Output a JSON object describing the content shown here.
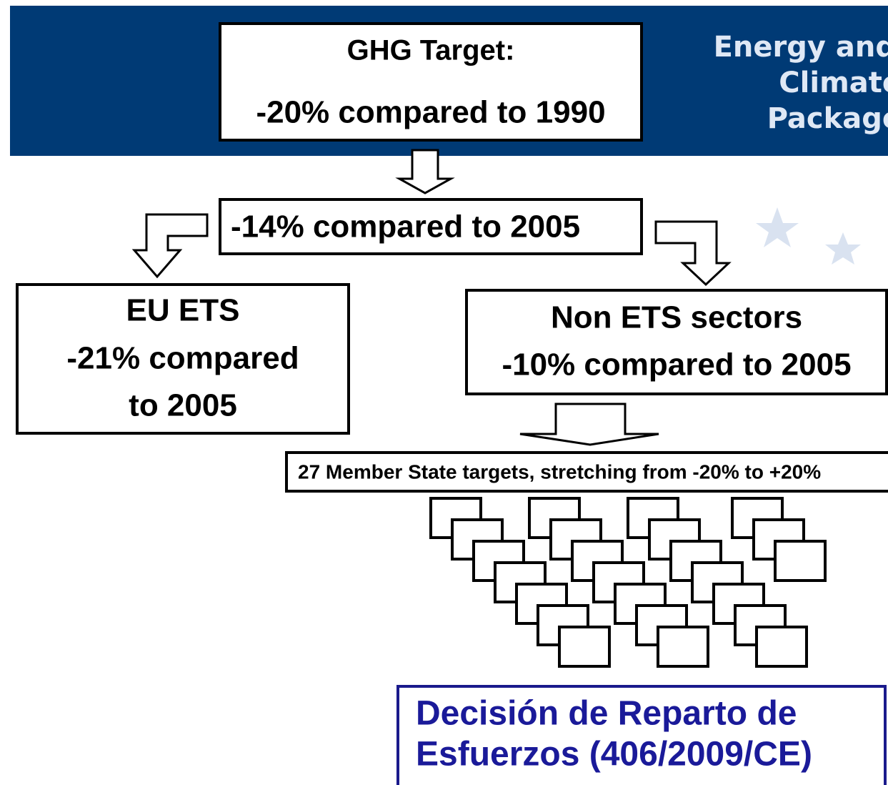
{
  "banner": {
    "lines": [
      "Energy and",
      "Climate",
      "Package"
    ]
  },
  "nodes": [
    {
      "id": "ghg",
      "lines": [
        "GHG Target:",
        "-20% compared to 1990"
      ]
    },
    {
      "id": "total",
      "lines": [
        "-14% compared to 2005"
      ]
    },
    {
      "id": "ets",
      "lines": [
        "EU ETS",
        "-21% compared",
        "to 2005"
      ]
    },
    {
      "id": "non-ets",
      "lines": [
        "Non ETS sectors",
        "-10% compared to 2005"
      ]
    },
    {
      "id": "member-states",
      "lines": [
        "27 Member State targets, stretching from -20% to +20%"
      ]
    }
  ],
  "footer": {
    "lines": [
      "Decisión de Reparto de",
      "Esfuerzos (406/2009/CE)"
    ]
  }
}
